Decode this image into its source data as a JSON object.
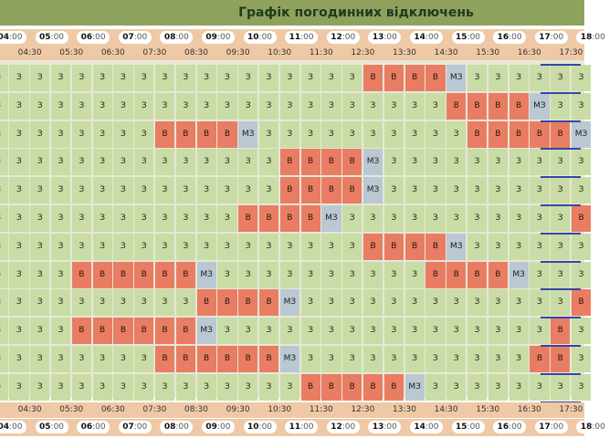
{
  "title": "Графік погодинних відключень",
  "hours": [
    "04:00",
    "05:00",
    "06:00",
    "07:00",
    "08:00",
    "09:00",
    "10:00",
    "11:00",
    "12:00",
    "13:00",
    "14:00",
    "15:00",
    "16:00",
    "17:00",
    "18:00"
  ],
  "halves": [
    "04:30",
    "05:30",
    "06:30",
    "07:30",
    "08:30",
    "09:30",
    "10:30",
    "11:30",
    "12:30",
    "13:30",
    "14:30",
    "15:30",
    "16:30",
    "17:30"
  ],
  "rows": [
    "ZZZZZZZZZZZZZZZZZZVVVVMZZZZZZ",
    "ZZZZZZZZZZZZZZZZZZZZZZVVVVMZZ",
    "ZZZZZZZZVVVVMZZZZZZZZZZVVVVVM",
    "ZZZZZZZZZZZZZZVVVVMZZZZZZZZZZ",
    "ZZZZZZZZZZZZZZVVVVMZZZZZZZZZZ",
    "ZZZZZZZZZZZZVVVVMZZZZZZZZZZZV",
    "ZZZZZZZZZZZZZZZZZZVVVVMZZZZZZ",
    "ZZZZVVVVVVMZZZZZZZZZZVVVVMZZZ",
    "ZZZZZZZZZZVVVVMZZZZZZZZZZZZZV",
    "ZZZZVVVVVVMZZZZZZZZZZZZZZZZVZ",
    "ZZZZZZZZVVVVVVMZZZZZZZZZZZVVZ",
    "ZZZZZZZZZZZZZZZVVVVVMZZZZZZZZ"
  ],
  "labels": {
    "Z": "З",
    "V": "В",
    "M": "МЗ"
  },
  "colors": {
    "Z": "#c9dca6",
    "V": "#e97d63",
    "M": "#b9c8d2"
  }
}
